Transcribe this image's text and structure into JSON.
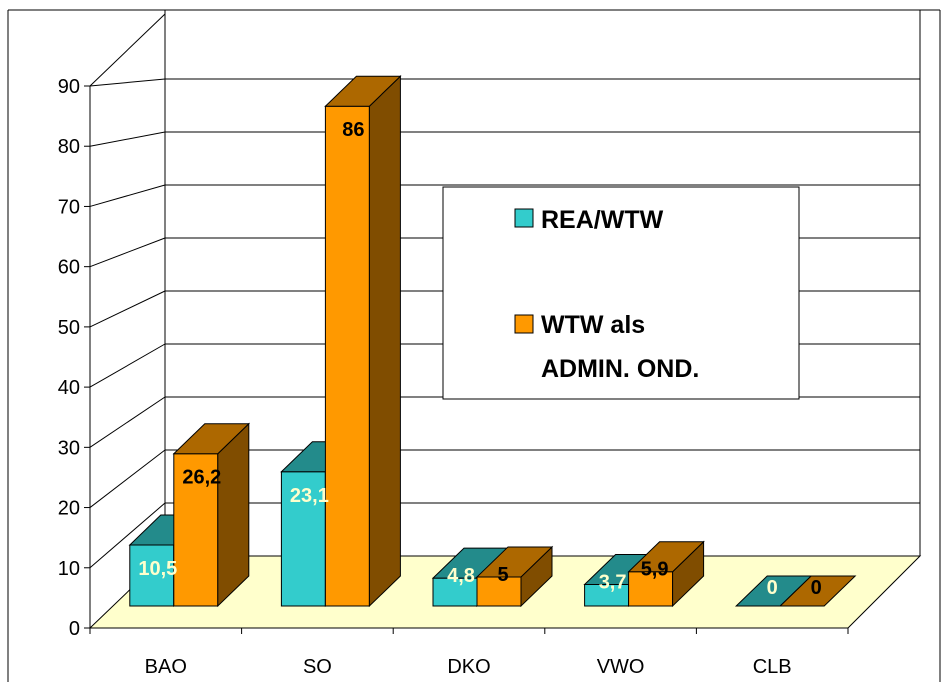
{
  "chart_data": {
    "type": "bar",
    "categories": [
      "BAO",
      "SO",
      "DKO",
      "VWO",
      "CLB"
    ],
    "series": [
      {
        "name": "REA/WTW",
        "values": [
          10.5,
          23.1,
          4.8,
          3.7,
          0
        ],
        "labels": [
          "10,5",
          "23,1",
          "4,8",
          "3,7",
          "0"
        ],
        "color": "#33CCCC",
        "label_color": "#FFFFCC"
      },
      {
        "name": "WTW als ADMIN. OND.",
        "name_lines": [
          "WTW als",
          "ADMIN. OND."
        ],
        "values": [
          26.2,
          86,
          5,
          5.9,
          0
        ],
        "labels": [
          "26,2",
          "86",
          "5",
          "5,9",
          "0"
        ],
        "color": "#FF9900",
        "label_color": "#000000"
      }
    ],
    "ylim": [
      0,
      90
    ],
    "yticks": [
      "0",
      "10",
      "20",
      "30",
      "40",
      "50",
      "60",
      "70",
      "80",
      "90"
    ],
    "grid": true,
    "legend_position": "center-right",
    "floor_color": "#FFFFCC",
    "three_d": true
  }
}
